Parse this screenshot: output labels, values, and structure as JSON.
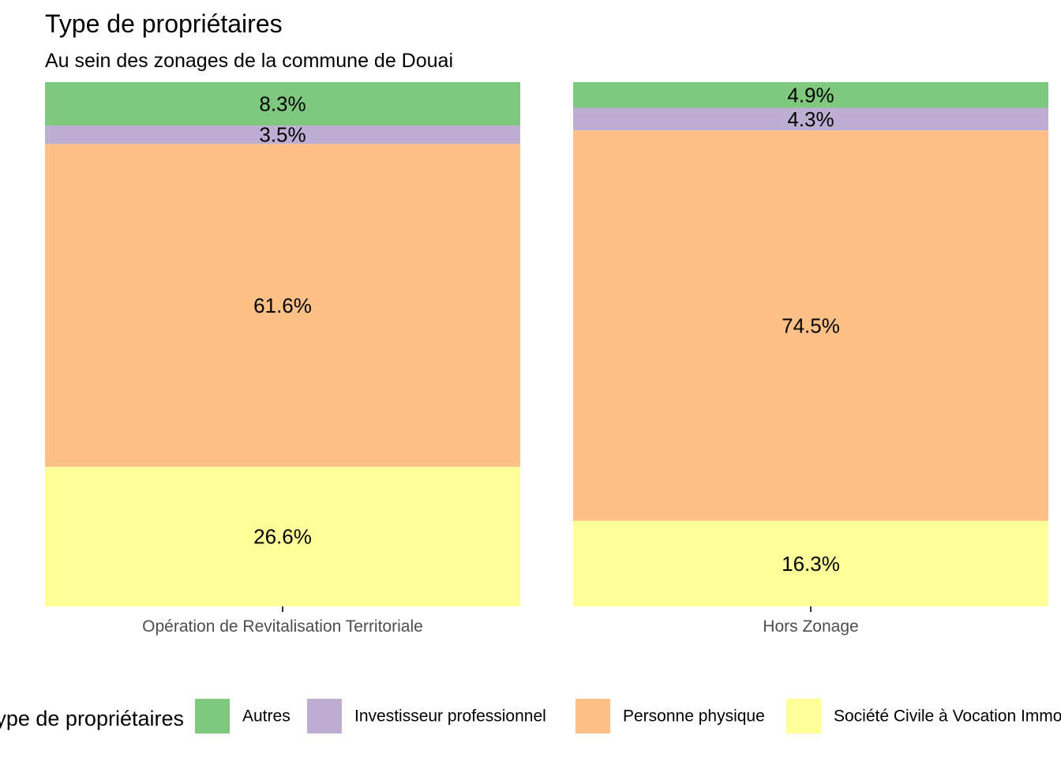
{
  "chart_data": {
    "type": "bar",
    "stacked": true,
    "title": "Type de propriétaires",
    "subtitle": "Au sein des zonages de la commune de Douai",
    "xlabel": "",
    "ylabel": "",
    "categories": [
      "Opération de Revitalisation Territoriale",
      "Hors Zonage"
    ],
    "series": [
      {
        "name": "Autres",
        "color": "#7fc97f",
        "values": [
          8.3,
          4.9
        ]
      },
      {
        "name": "Investisseur professionnel",
        "color": "#beaed4",
        "values": [
          3.5,
          4.3
        ]
      },
      {
        "name": "Personne physique",
        "color": "#fdc086",
        "values": [
          61.6,
          74.5
        ]
      },
      {
        "name": "Société Civile à Vocation Immobilière",
        "color": "#ffff99",
        "values": [
          26.6,
          16.3
        ]
      }
    ],
    "value_labels": [
      [
        "8.3%",
        "4.9%"
      ],
      [
        "3.5%",
        "4.3%"
      ],
      [
        "61.6%",
        "74.5%"
      ],
      [
        "26.6%",
        "16.3%"
      ]
    ],
    "ylim": [
      0,
      100
    ],
    "grid": false,
    "legend": {
      "title": "Type de propriétaires",
      "position": "bottom"
    }
  }
}
